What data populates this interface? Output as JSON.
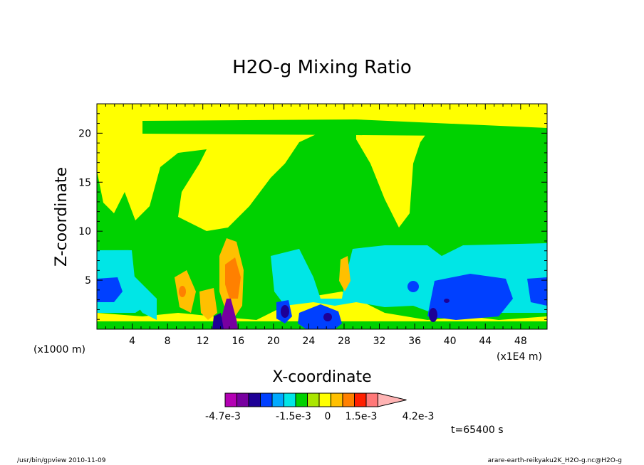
{
  "chart_data": {
    "type": "heatmap",
    "title": "H2O-g Mixing Ratio",
    "xlabel": "X-coordinate",
    "ylabel": "Z-coordinate",
    "x_unit_left": "(x1000 m)",
    "x_unit_right": "(x1E4 m)",
    "x_range": [
      0,
      51
    ],
    "y_range": [
      0,
      23
    ],
    "x_ticks": [
      "4",
      "8",
      "12",
      "16",
      "20",
      "24",
      "28",
      "32",
      "36",
      "40",
      "44",
      "48"
    ],
    "y_ticks": [
      "5",
      "10",
      "15",
      "20"
    ],
    "time_label": "t=65400 s",
    "colorbar": {
      "labels": [
        "-4.7e-3",
        "-1.5e-3",
        "0",
        "1.5e-3",
        "4.2e-3"
      ],
      "colors": [
        "#b400b4",
        "#7800a0",
        "#1e0096",
        "#0040ff",
        "#00aaff",
        "#00e6e6",
        "#00d200",
        "#aae600",
        "#ffff00",
        "#ffc000",
        "#ff8000",
        "#ff2000",
        "#ff7878",
        "#ffb4b4"
      ]
    },
    "regions": [
      {
        "level": "green",
        "color": "#00d200"
      },
      {
        "level": "yellow",
        "color": "#ffff00"
      },
      {
        "level": "cyan",
        "color": "#00e6e6"
      },
      {
        "level": "blue",
        "color": "#0040ff"
      },
      {
        "level": "dark-blue",
        "color": "#1e0096"
      },
      {
        "level": "orange",
        "color": "#ffc000"
      },
      {
        "level": "dark-orange",
        "color": "#ff8000"
      },
      {
        "level": "purple",
        "color": "#7800a0"
      }
    ]
  },
  "footer": {
    "left": "/usr/bin/gpview  2010-11-09",
    "right": "arare-earth-reikyaku2K_H2O-g.nc@H2O-g"
  }
}
